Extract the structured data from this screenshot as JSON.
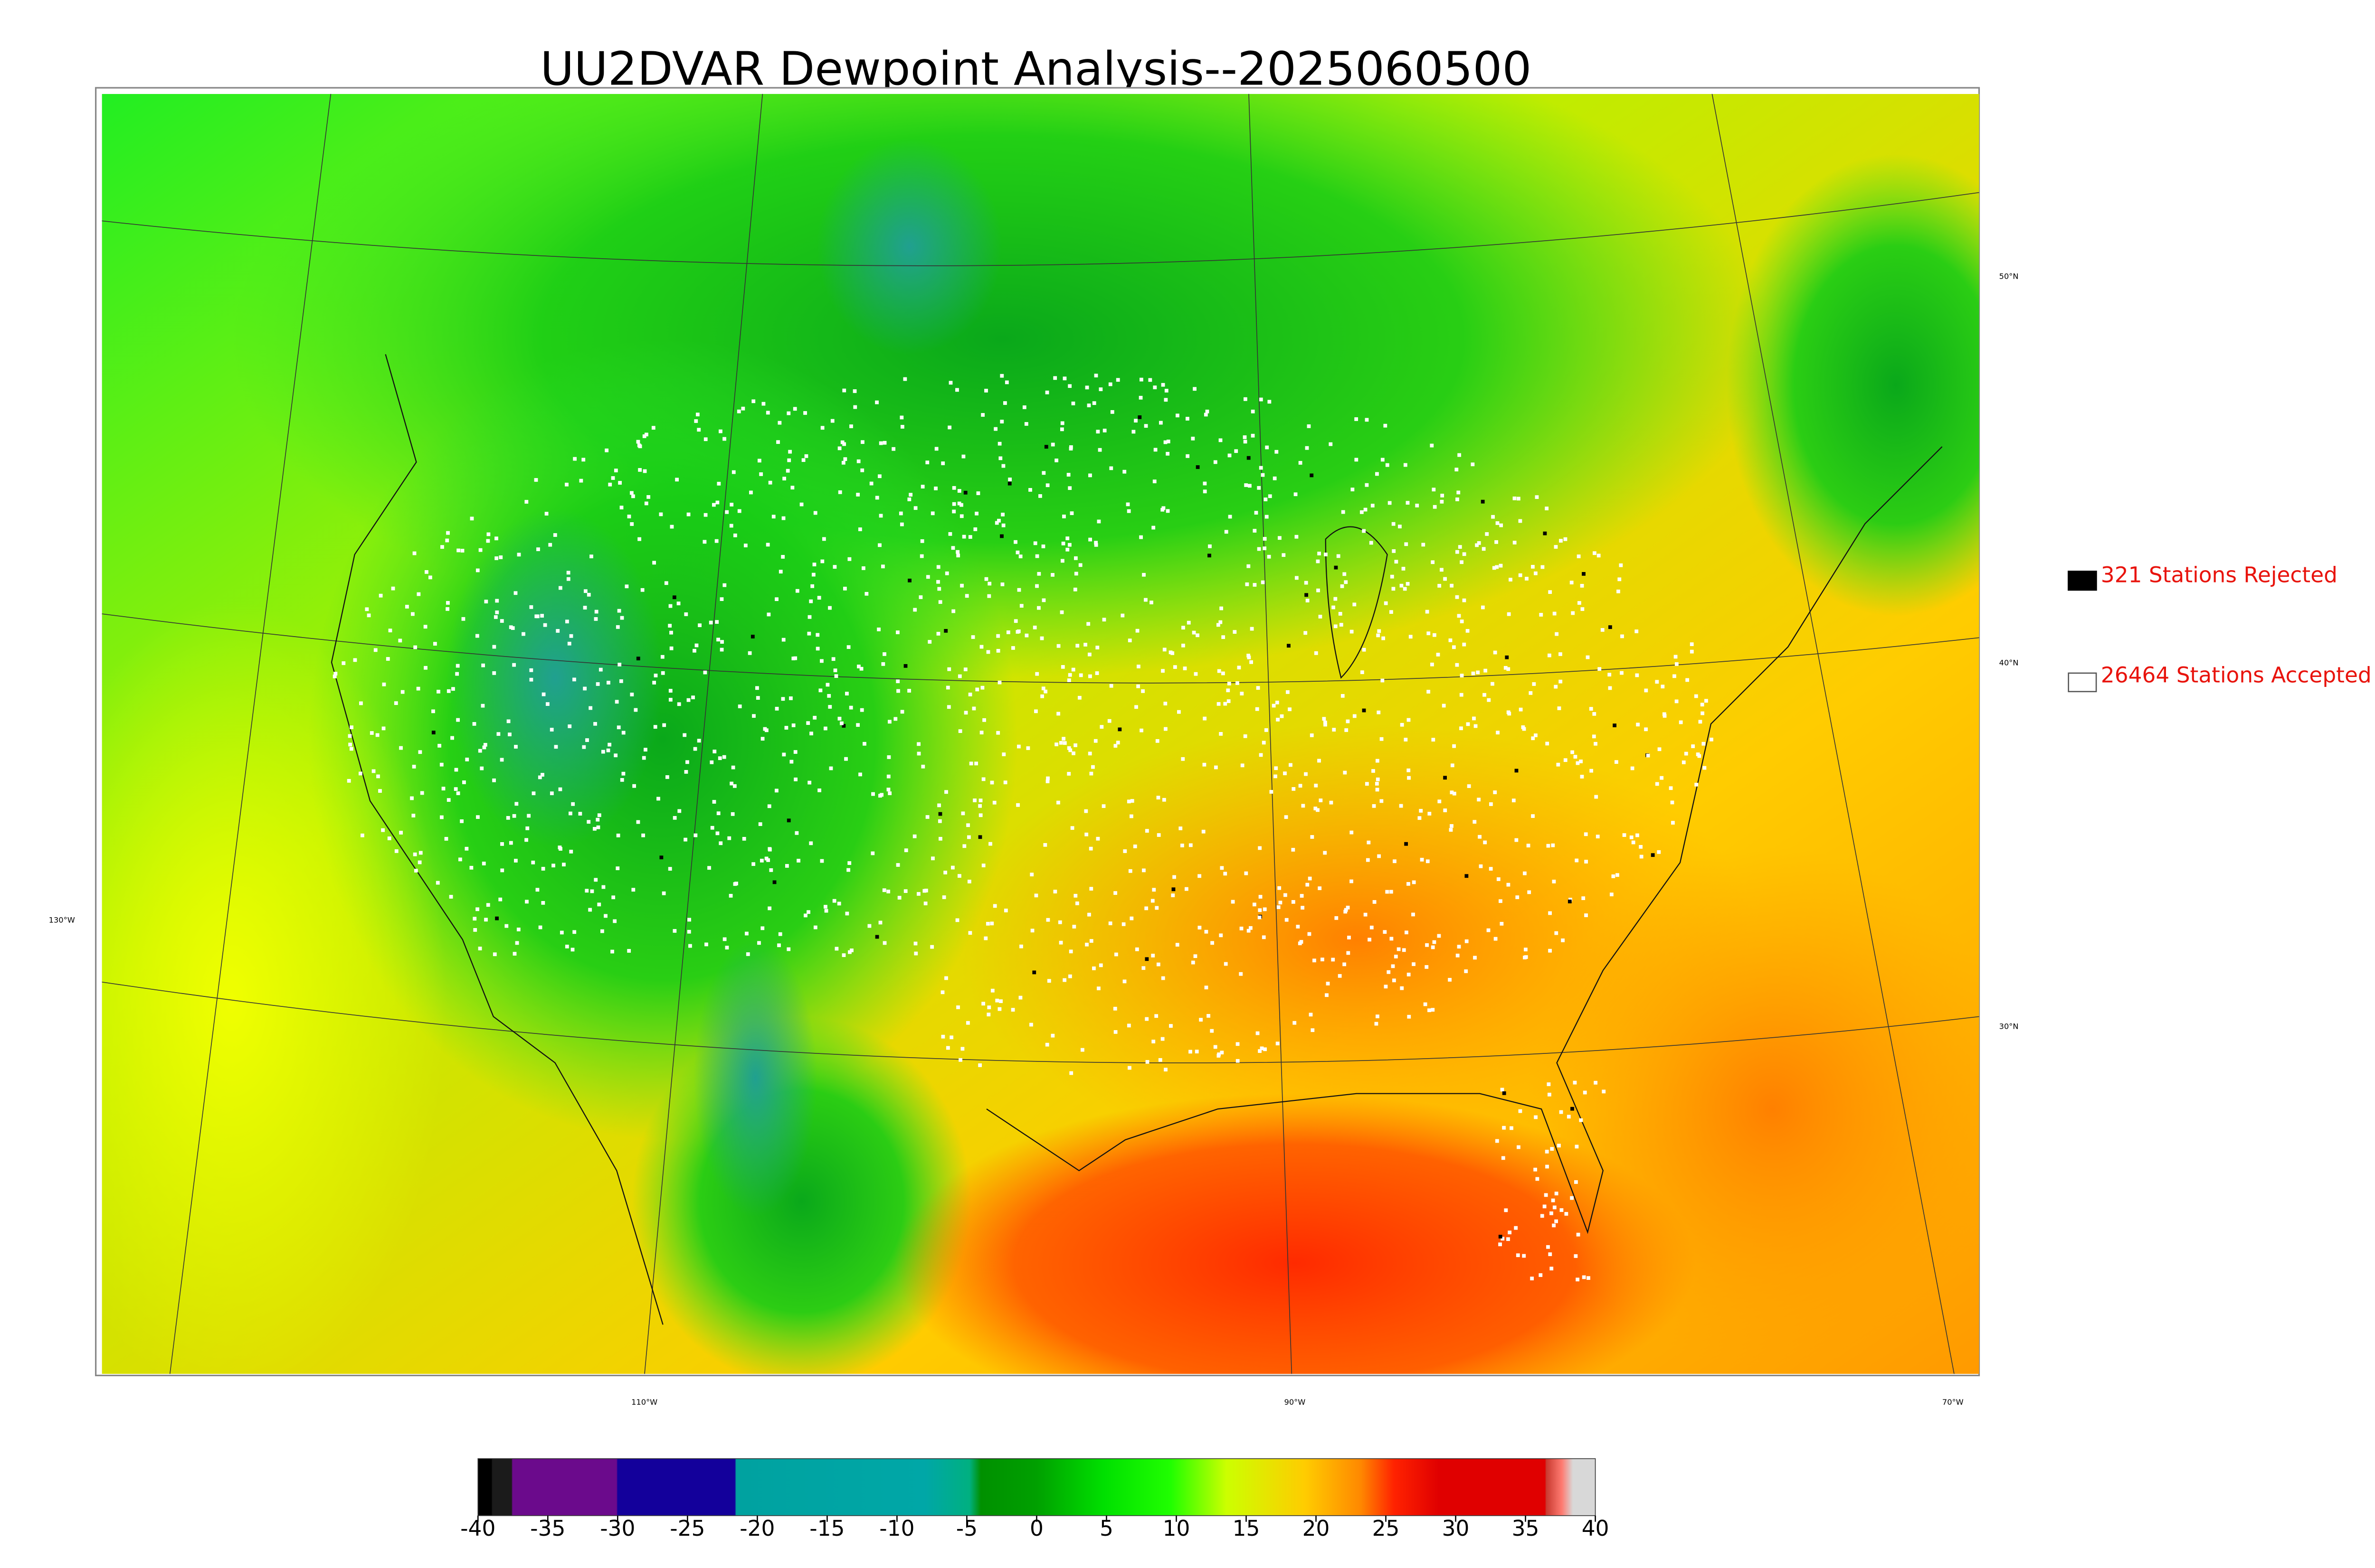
{
  "header": {
    "title": "UU2DVAR Dewpoint Analysis--2025060500"
  },
  "legend": {
    "rejected": "321 Stations Rejected",
    "accepted": "26464 Stations Accepted"
  },
  "graticule": {
    "latitudes": [
      "50°N",
      "40°N",
      "30°N"
    ],
    "longitudes": [
      "130°W",
      "110°W",
      "90°W",
      "70°W"
    ]
  },
  "colorbar": {
    "range": [
      -40,
      40
    ],
    "ticks": [
      -40,
      -35,
      -30,
      -25,
      -20,
      -15,
      -10,
      -5,
      0,
      5,
      10,
      15,
      20,
      25,
      30,
      35,
      40
    ]
  }
}
